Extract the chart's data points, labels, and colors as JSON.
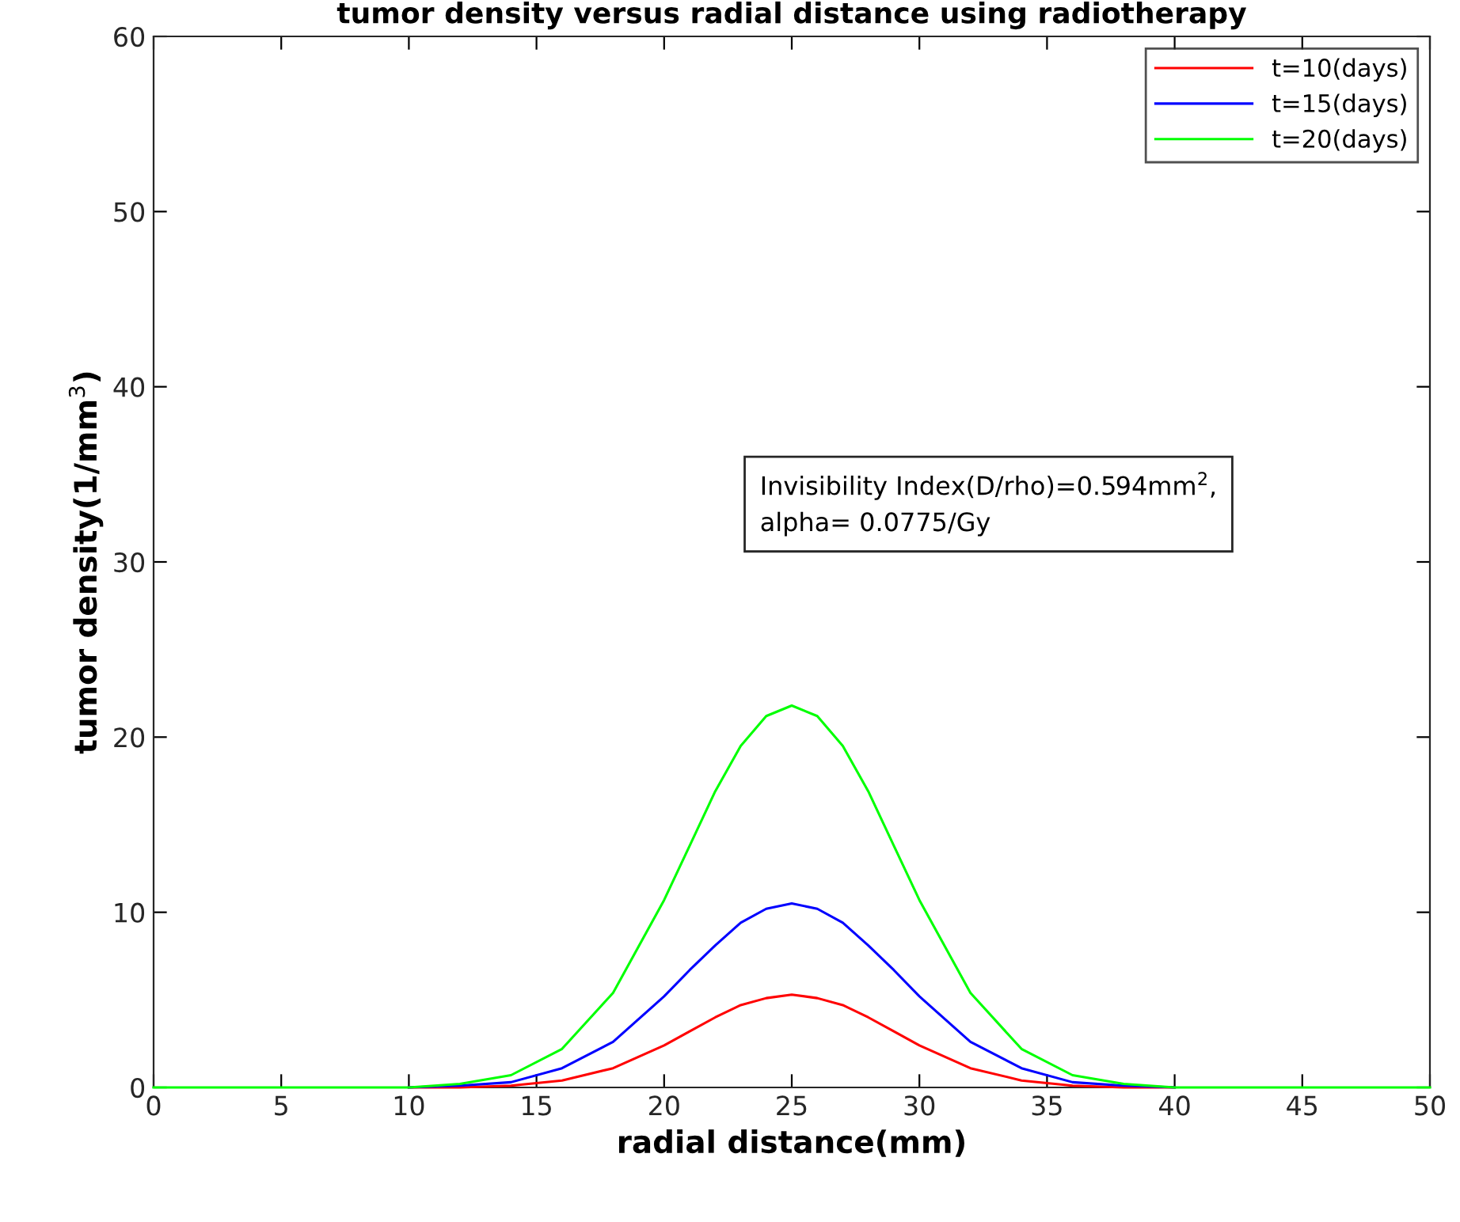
{
  "chart_data": {
    "type": "line",
    "title": "tumor density versus radial distance using radiotherapy",
    "xlabel": "radial distance(mm)",
    "ylabel": "tumor density(1/mm$^{3}$)",
    "x": [
      0,
      5,
      9,
      10,
      12,
      14,
      16,
      18,
      20,
      21,
      22,
      23,
      24,
      25,
      26,
      27,
      28,
      29,
      30,
      32,
      34,
      36,
      38,
      40,
      41,
      45,
      50
    ],
    "series": [
      {
        "name": "t=10(days)",
        "color": "#ff0000",
        "values": [
          null,
          null,
          null,
          0,
          0.0,
          0.1,
          0.4,
          1.1,
          2.4,
          3.2,
          4.0,
          4.7,
          5.1,
          5.3,
          5.1,
          4.7,
          4.0,
          3.2,
          2.4,
          1.1,
          0.4,
          0.1,
          0.0,
          0,
          null,
          null,
          null
        ]
      },
      {
        "name": "t=15(days)",
        "color": "#0000ff",
        "values": [
          null,
          null,
          null,
          0,
          0.1,
          0.3,
          1.1,
          2.6,
          5.2,
          6.7,
          8.1,
          9.4,
          10.2,
          10.5,
          10.2,
          9.4,
          8.1,
          6.7,
          5.2,
          2.6,
          1.1,
          0.3,
          0.1,
          0,
          null,
          null,
          null
        ]
      },
      {
        "name": "t=20(days)",
        "color": "#00ff00",
        "values": [
          0,
          0,
          0,
          0,
          0.2,
          0.7,
          2.2,
          5.4,
          10.7,
          13.8,
          16.9,
          19.5,
          21.2,
          21.8,
          21.2,
          19.5,
          16.9,
          13.8,
          10.7,
          5.4,
          2.2,
          0.7,
          0.2,
          0,
          0,
          0,
          0
        ]
      }
    ],
    "xlim": [
      0,
      50
    ],
    "ylim": [
      0,
      60
    ],
    "xticks": [
      0,
      5,
      10,
      15,
      20,
      25,
      30,
      35,
      40,
      45,
      50
    ],
    "yticks": [
      0,
      10,
      20,
      30,
      40,
      50,
      60
    ],
    "annotations": [
      "Invisibility Index(D/rho)=0.594mm$^{2}$,\nalpha= 0.0775/Gy"
    ],
    "legend": "top right",
    "grid": false,
    "marker": "none",
    "line_style": "solid"
  }
}
